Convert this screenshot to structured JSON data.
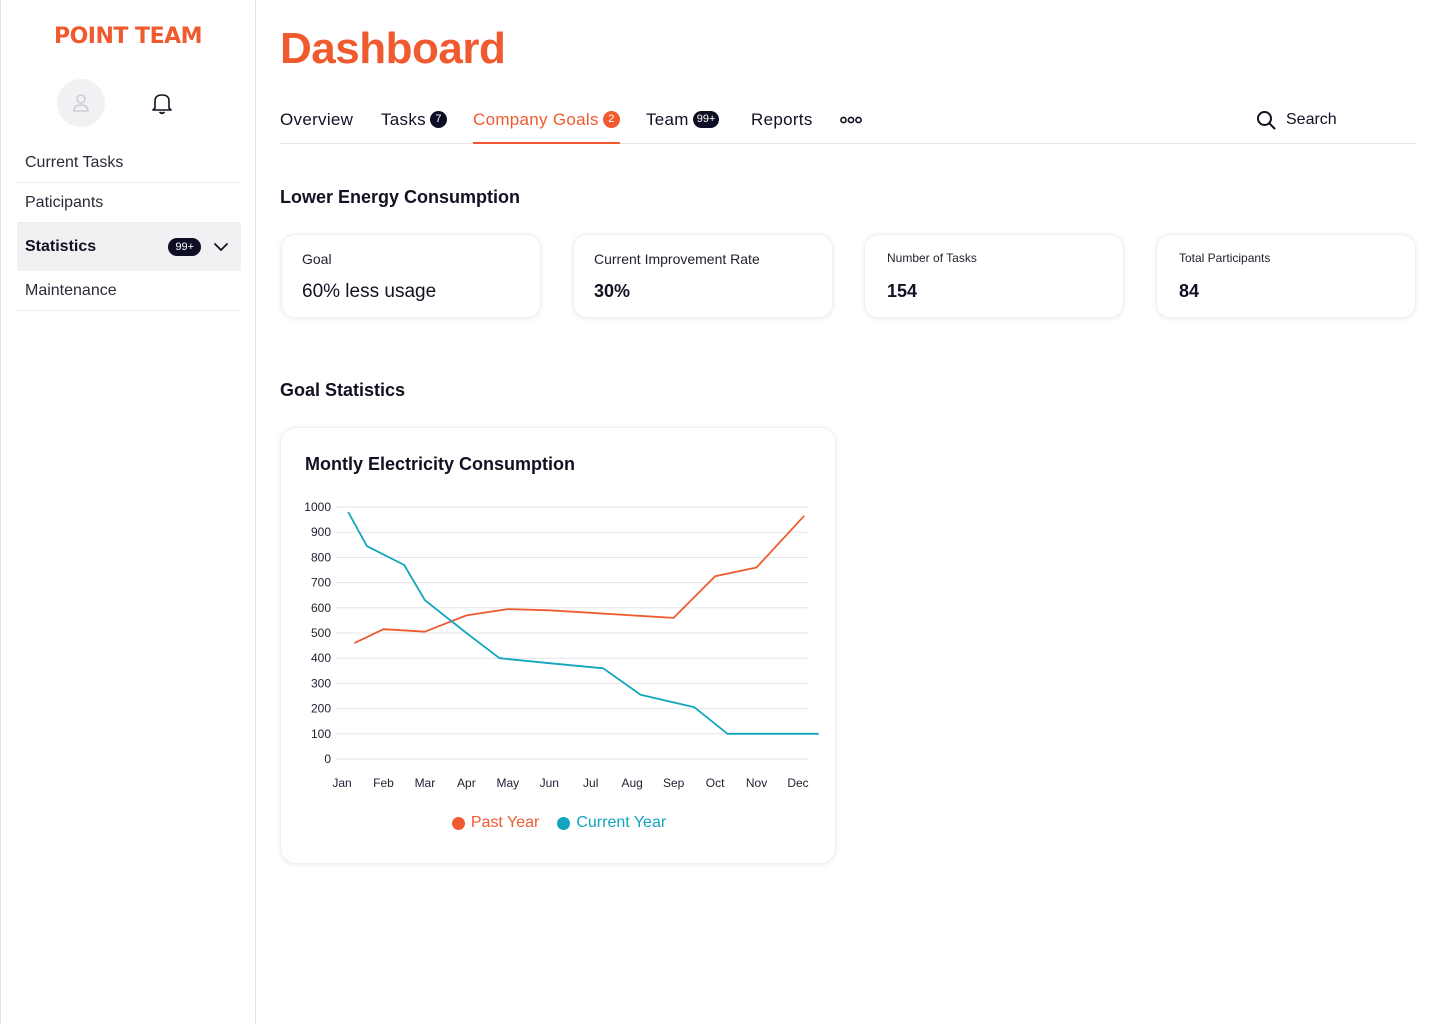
{
  "app": {
    "brand": "POINT TEAM",
    "page_title": "Dashboard"
  },
  "sidebar": {
    "items": [
      {
        "label": "Current Tasks"
      },
      {
        "label": "Paticipants"
      },
      {
        "label": "Statistics",
        "badge": "99+",
        "active": true
      },
      {
        "label": "Maintenance"
      }
    ]
  },
  "tabs": [
    {
      "label": "Overview"
    },
    {
      "label": "Tasks",
      "count": "7"
    },
    {
      "label": "Company Goals",
      "count": "2",
      "active": true
    },
    {
      "label": "Team",
      "count": "99+"
    },
    {
      "label": "Reports"
    }
  ],
  "search": {
    "label": "Search"
  },
  "goal_section": {
    "title": "Lower Energy Consumption",
    "cards": [
      {
        "label": "Goal",
        "value": "60% less usage"
      },
      {
        "label": "Current Improvement Rate",
        "value": "30%"
      },
      {
        "label": "Number of Tasks",
        "value": "154"
      },
      {
        "label": "Total Participants",
        "value": "84"
      }
    ]
  },
  "stats_section": {
    "title": "Goal Statistics"
  },
  "colors": {
    "accent": "#ef5b2f",
    "secondary": "#12a5bd",
    "dark": "#0d0d24"
  },
  "chart_data": {
    "type": "line",
    "title": "Montly Electricity Consumption",
    "categories": [
      "Jan",
      "Feb",
      "Mar",
      "Apr",
      "May",
      "Jun",
      "Jul",
      "Aug",
      "Sep",
      "Oct",
      "Nov",
      "Dec"
    ],
    "ylim": [
      0,
      1000
    ],
    "yticks": [
      0,
      100,
      200,
      300,
      400,
      500,
      600,
      700,
      800,
      900,
      1000
    ],
    "grid": true,
    "legend_position": "bottom-center",
    "series": [
      {
        "name": "Past Year",
        "color": "#ef5b2f",
        "x": [
          0.3,
          1,
          2,
          3,
          4,
          5,
          6,
          7,
          8,
          9,
          10,
          11.15
        ],
        "values": [
          460,
          515,
          505,
          570,
          595,
          590,
          580,
          570,
          560,
          725,
          760,
          965
        ]
      },
      {
        "name": "Current Year",
        "color": "#12a5bd",
        "x": [
          0.15,
          0.6,
          1.5,
          2,
          3,
          3.8,
          5,
          6.3,
          7.2,
          8.5,
          9.3,
          11.5
        ],
        "values": [
          980,
          845,
          770,
          630,
          500,
          400,
          380,
          360,
          255,
          205,
          100,
          100
        ]
      }
    ]
  }
}
